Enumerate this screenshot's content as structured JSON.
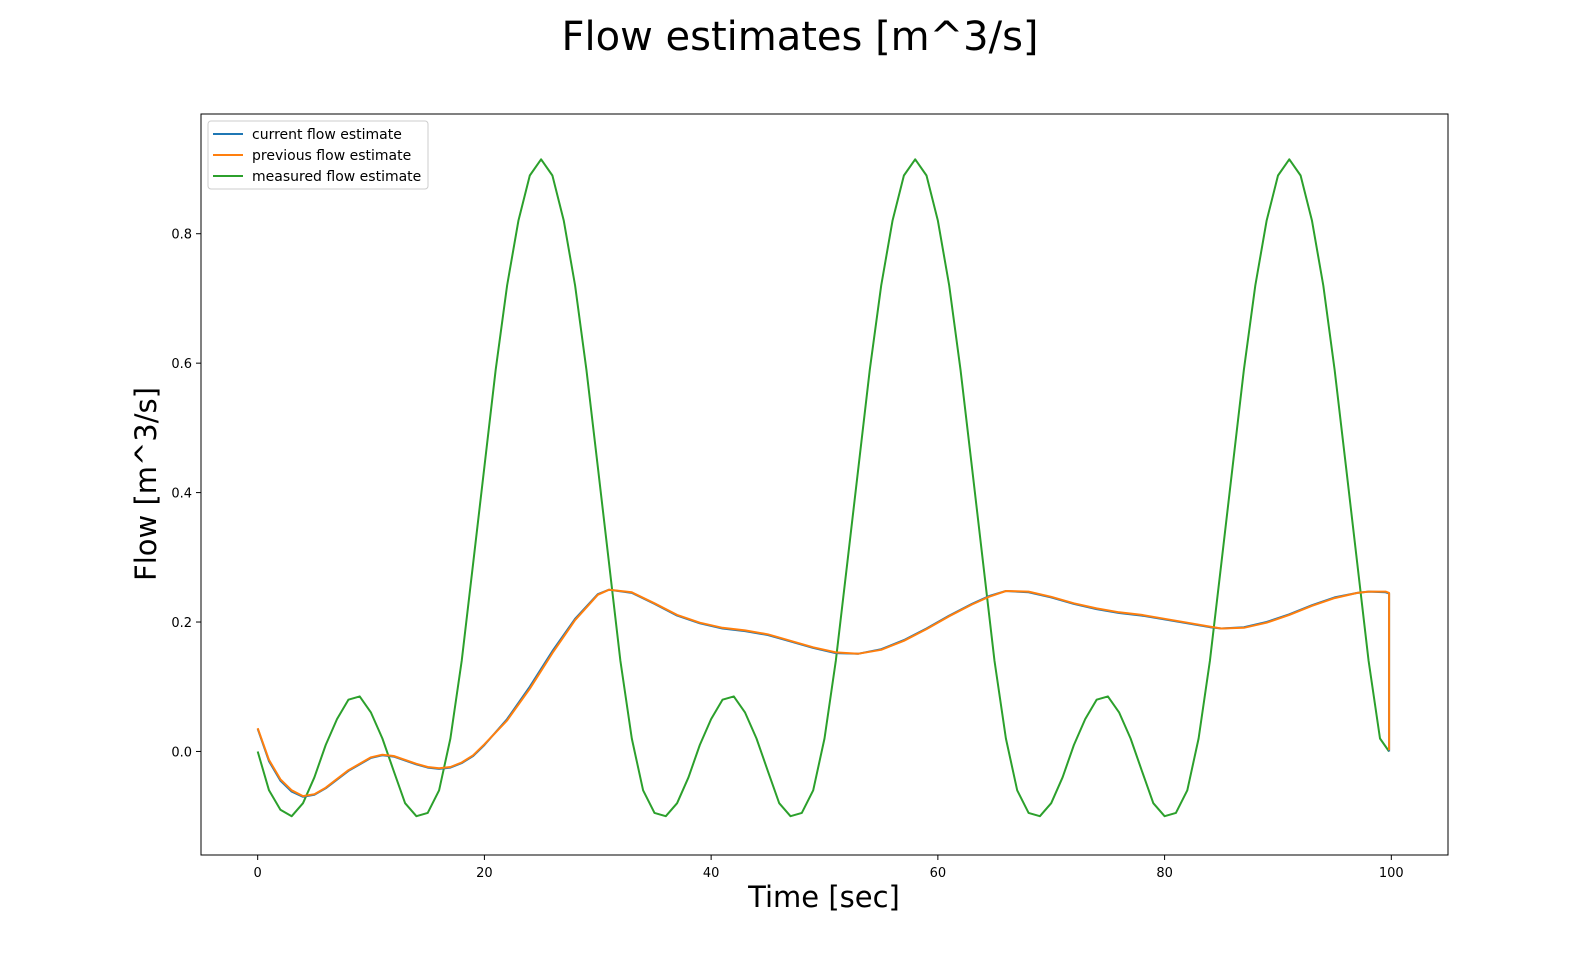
{
  "chart_data": {
    "type": "line",
    "title": "Flow estimates [m^3/s]",
    "xlabel": "Time [sec]",
    "ylabel": "Flow [m^3/s]",
    "xlim": [
      -5,
      105
    ],
    "ylim": [
      -0.16,
      0.985
    ],
    "xticks": [
      0,
      20,
      40,
      60,
      80,
      100
    ],
    "yticks": [
      0.0,
      0.2,
      0.4,
      0.6,
      0.8
    ],
    "xtick_labels": [
      "0",
      "20",
      "40",
      "60",
      "80",
      "100"
    ],
    "ytick_labels": [
      "0.0",
      "0.2",
      "0.4",
      "0.6",
      "0.8"
    ],
    "grid": false,
    "legend_position": "top-left",
    "series": [
      {
        "name": "current flow estimate",
        "color": "#1f77b4",
        "x": [
          0,
          1,
          2,
          3,
          4,
          5,
          6,
          8,
          10,
          11,
          12,
          14,
          15,
          16,
          17,
          18,
          19,
          20,
          22,
          24,
          26,
          28,
          30,
          31,
          33,
          35,
          37,
          39,
          41,
          43,
          45,
          47,
          49,
          51,
          53,
          55,
          57,
          59,
          61,
          63,
          64.5,
          66,
          68,
          70,
          72,
          74,
          76,
          78,
          80,
          82,
          84,
          85,
          87,
          89,
          91,
          93,
          95,
          97,
          98,
          99.5,
          99.8,
          99.8
        ],
        "y": [
          0.035,
          -0.015,
          -0.045,
          -0.062,
          -0.07,
          -0.067,
          -0.057,
          -0.03,
          -0.01,
          -0.006,
          -0.008,
          -0.02,
          -0.025,
          -0.027,
          -0.025,
          -0.018,
          -0.007,
          0.01,
          0.05,
          0.1,
          0.155,
          0.205,
          0.243,
          0.25,
          0.245,
          0.228,
          0.21,
          0.198,
          0.19,
          0.186,
          0.18,
          0.17,
          0.16,
          0.152,
          0.151,
          0.158,
          0.172,
          0.19,
          0.21,
          0.228,
          0.24,
          0.248,
          0.246,
          0.238,
          0.228,
          0.22,
          0.214,
          0.21,
          0.204,
          0.198,
          0.192,
          0.19,
          0.192,
          0.2,
          0.212,
          0.226,
          0.238,
          0.245,
          0.247,
          0.246,
          0.244,
          0.0
        ]
      },
      {
        "name": "previous flow estimate",
        "color": "#ff7f0e",
        "x": [
          0,
          1,
          2,
          3,
          4,
          5,
          6,
          8,
          10,
          11,
          12,
          14,
          15,
          16,
          17,
          18,
          19,
          20,
          22,
          24,
          26,
          28,
          30,
          31,
          33,
          35,
          37,
          39,
          41,
          43,
          45,
          47,
          49,
          51,
          53,
          55,
          57,
          59,
          61,
          63,
          64.5,
          66,
          68,
          70,
          72,
          74,
          76,
          78,
          80,
          82,
          84,
          85,
          87,
          89,
          91,
          93,
          95,
          97,
          98,
          99.5,
          99.8,
          99.8
        ],
        "y": [
          0.036,
          -0.013,
          -0.043,
          -0.06,
          -0.069,
          -0.066,
          -0.056,
          -0.029,
          -0.009,
          -0.005,
          -0.007,
          -0.019,
          -0.024,
          -0.026,
          -0.024,
          -0.017,
          -0.006,
          0.011,
          0.048,
          0.097,
          0.152,
          0.203,
          0.242,
          0.25,
          0.246,
          0.229,
          0.211,
          0.199,
          0.191,
          0.187,
          0.181,
          0.171,
          0.161,
          0.153,
          0.151,
          0.157,
          0.171,
          0.189,
          0.209,
          0.227,
          0.239,
          0.248,
          0.247,
          0.239,
          0.229,
          0.221,
          0.215,
          0.211,
          0.205,
          0.199,
          0.193,
          0.19,
          0.191,
          0.199,
          0.211,
          0.225,
          0.237,
          0.245,
          0.247,
          0.247,
          0.245,
          0.002
        ]
      },
      {
        "name": "measured flow estimate",
        "color": "#2ca02c",
        "x": [
          0,
          1,
          2,
          3,
          4,
          5,
          6,
          7,
          8,
          9,
          10,
          11,
          12,
          13,
          14,
          15,
          16,
          17,
          18,
          19,
          20,
          21,
          22,
          23,
          24,
          25,
          26,
          27,
          28,
          29,
          30,
          31,
          32,
          33,
          34,
          35,
          36,
          37,
          38,
          39,
          40,
          41,
          42,
          43,
          44,
          45,
          46,
          47,
          48,
          49,
          50,
          51,
          52,
          53,
          54,
          55,
          56,
          57,
          58,
          59,
          60,
          61,
          62,
          63,
          64,
          65,
          66,
          67,
          68,
          69,
          70,
          71,
          72,
          73,
          74,
          75,
          76,
          77,
          78,
          79,
          80,
          81,
          82,
          83,
          84,
          85,
          86,
          87,
          88,
          89,
          90,
          91,
          92,
          93,
          94,
          95,
          96,
          97,
          98,
          99,
          99.8
        ],
        "y": [
          0.0,
          -0.06,
          -0.09,
          -0.1,
          -0.08,
          -0.04,
          0.01,
          0.05,
          0.08,
          0.085,
          0.06,
          0.02,
          -0.03,
          -0.08,
          -0.1,
          -0.095,
          -0.06,
          0.02,
          0.14,
          0.29,
          0.44,
          0.59,
          0.72,
          0.82,
          0.89,
          0.915,
          0.89,
          0.82,
          0.72,
          0.59,
          0.44,
          0.29,
          0.14,
          0.02,
          -0.06,
          -0.095,
          -0.1,
          -0.08,
          -0.04,
          0.01,
          0.05,
          0.08,
          0.085,
          0.06,
          0.02,
          -0.03,
          -0.08,
          -0.1,
          -0.095,
          -0.06,
          0.02,
          0.14,
          0.29,
          0.44,
          0.59,
          0.72,
          0.82,
          0.89,
          0.915,
          0.89,
          0.82,
          0.72,
          0.59,
          0.44,
          0.29,
          0.14,
          0.02,
          -0.06,
          -0.095,
          -0.1,
          -0.08,
          -0.04,
          0.01,
          0.05,
          0.08,
          0.085,
          0.06,
          0.02,
          -0.03,
          -0.08,
          -0.1,
          -0.095,
          -0.06,
          0.02,
          0.14,
          0.29,
          0.44,
          0.59,
          0.72,
          0.82,
          0.89,
          0.915,
          0.89,
          0.82,
          0.72,
          0.59,
          0.44,
          0.29,
          0.14,
          0.02,
          0.0
        ]
      }
    ]
  }
}
